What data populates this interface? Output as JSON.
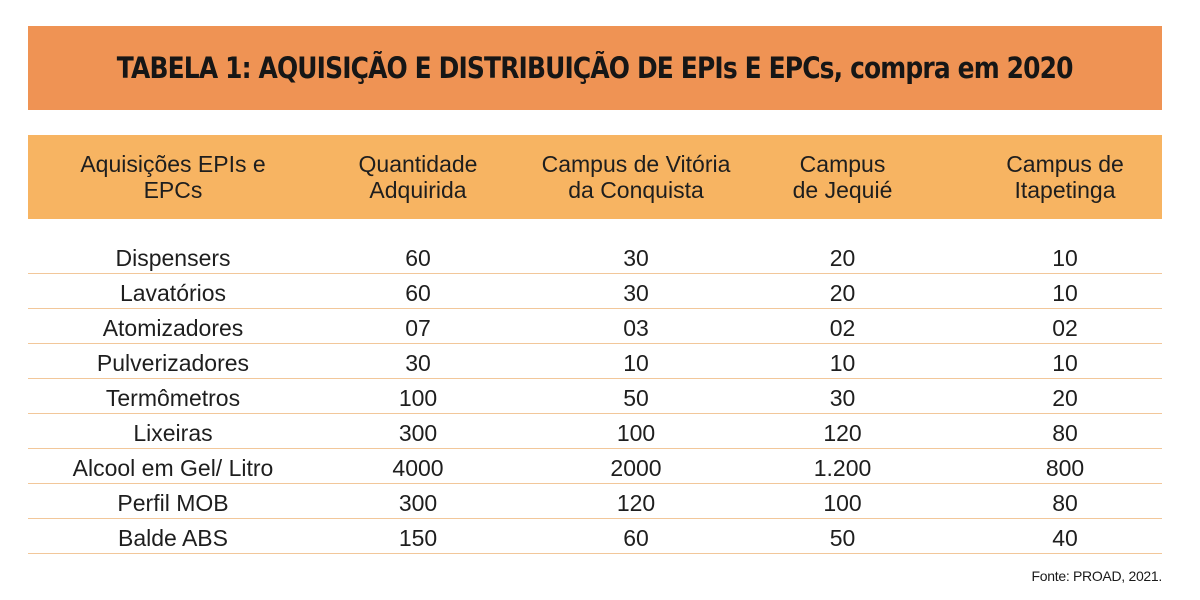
{
  "title": "TABELA 1: AQUISIÇÃO E DISTRIBUIÇÃO DE EPIs E EPCs, compra em 2020",
  "colors": {
    "title_background": "#ef9354",
    "header_background": "#f7b462",
    "row_divider": "#f2c79a"
  },
  "table": {
    "headers": [
      "Aquisições EPIs e\nEPCs",
      "Quantidade\nAdquirida",
      "Campus de Vitória\nda Conquista",
      "Campus\nde Jequié",
      "Campus de\nItapetinga"
    ],
    "rows": [
      [
        "Dispensers",
        "60",
        "30",
        "20",
        "10"
      ],
      [
        "Lavatórios",
        "60",
        "30",
        "20",
        "10"
      ],
      [
        "Atomizadores",
        "07",
        "03",
        "02",
        "02"
      ],
      [
        "Pulverizadores",
        "30",
        "10",
        "10",
        "10"
      ],
      [
        "Termômetros",
        "100",
        "50",
        "30",
        "20"
      ],
      [
        "Lixeiras",
        "300",
        "100",
        "120",
        "80"
      ],
      [
        "Alcool em Gel/ Litro",
        "4000",
        "2000",
        "1.200",
        "800"
      ],
      [
        "Perfil MOB",
        "300",
        "120",
        "100",
        "80"
      ],
      [
        "Balde ABS",
        "150",
        "60",
        "50",
        "40"
      ]
    ]
  },
  "source": "Fonte: PROAD, 2021."
}
